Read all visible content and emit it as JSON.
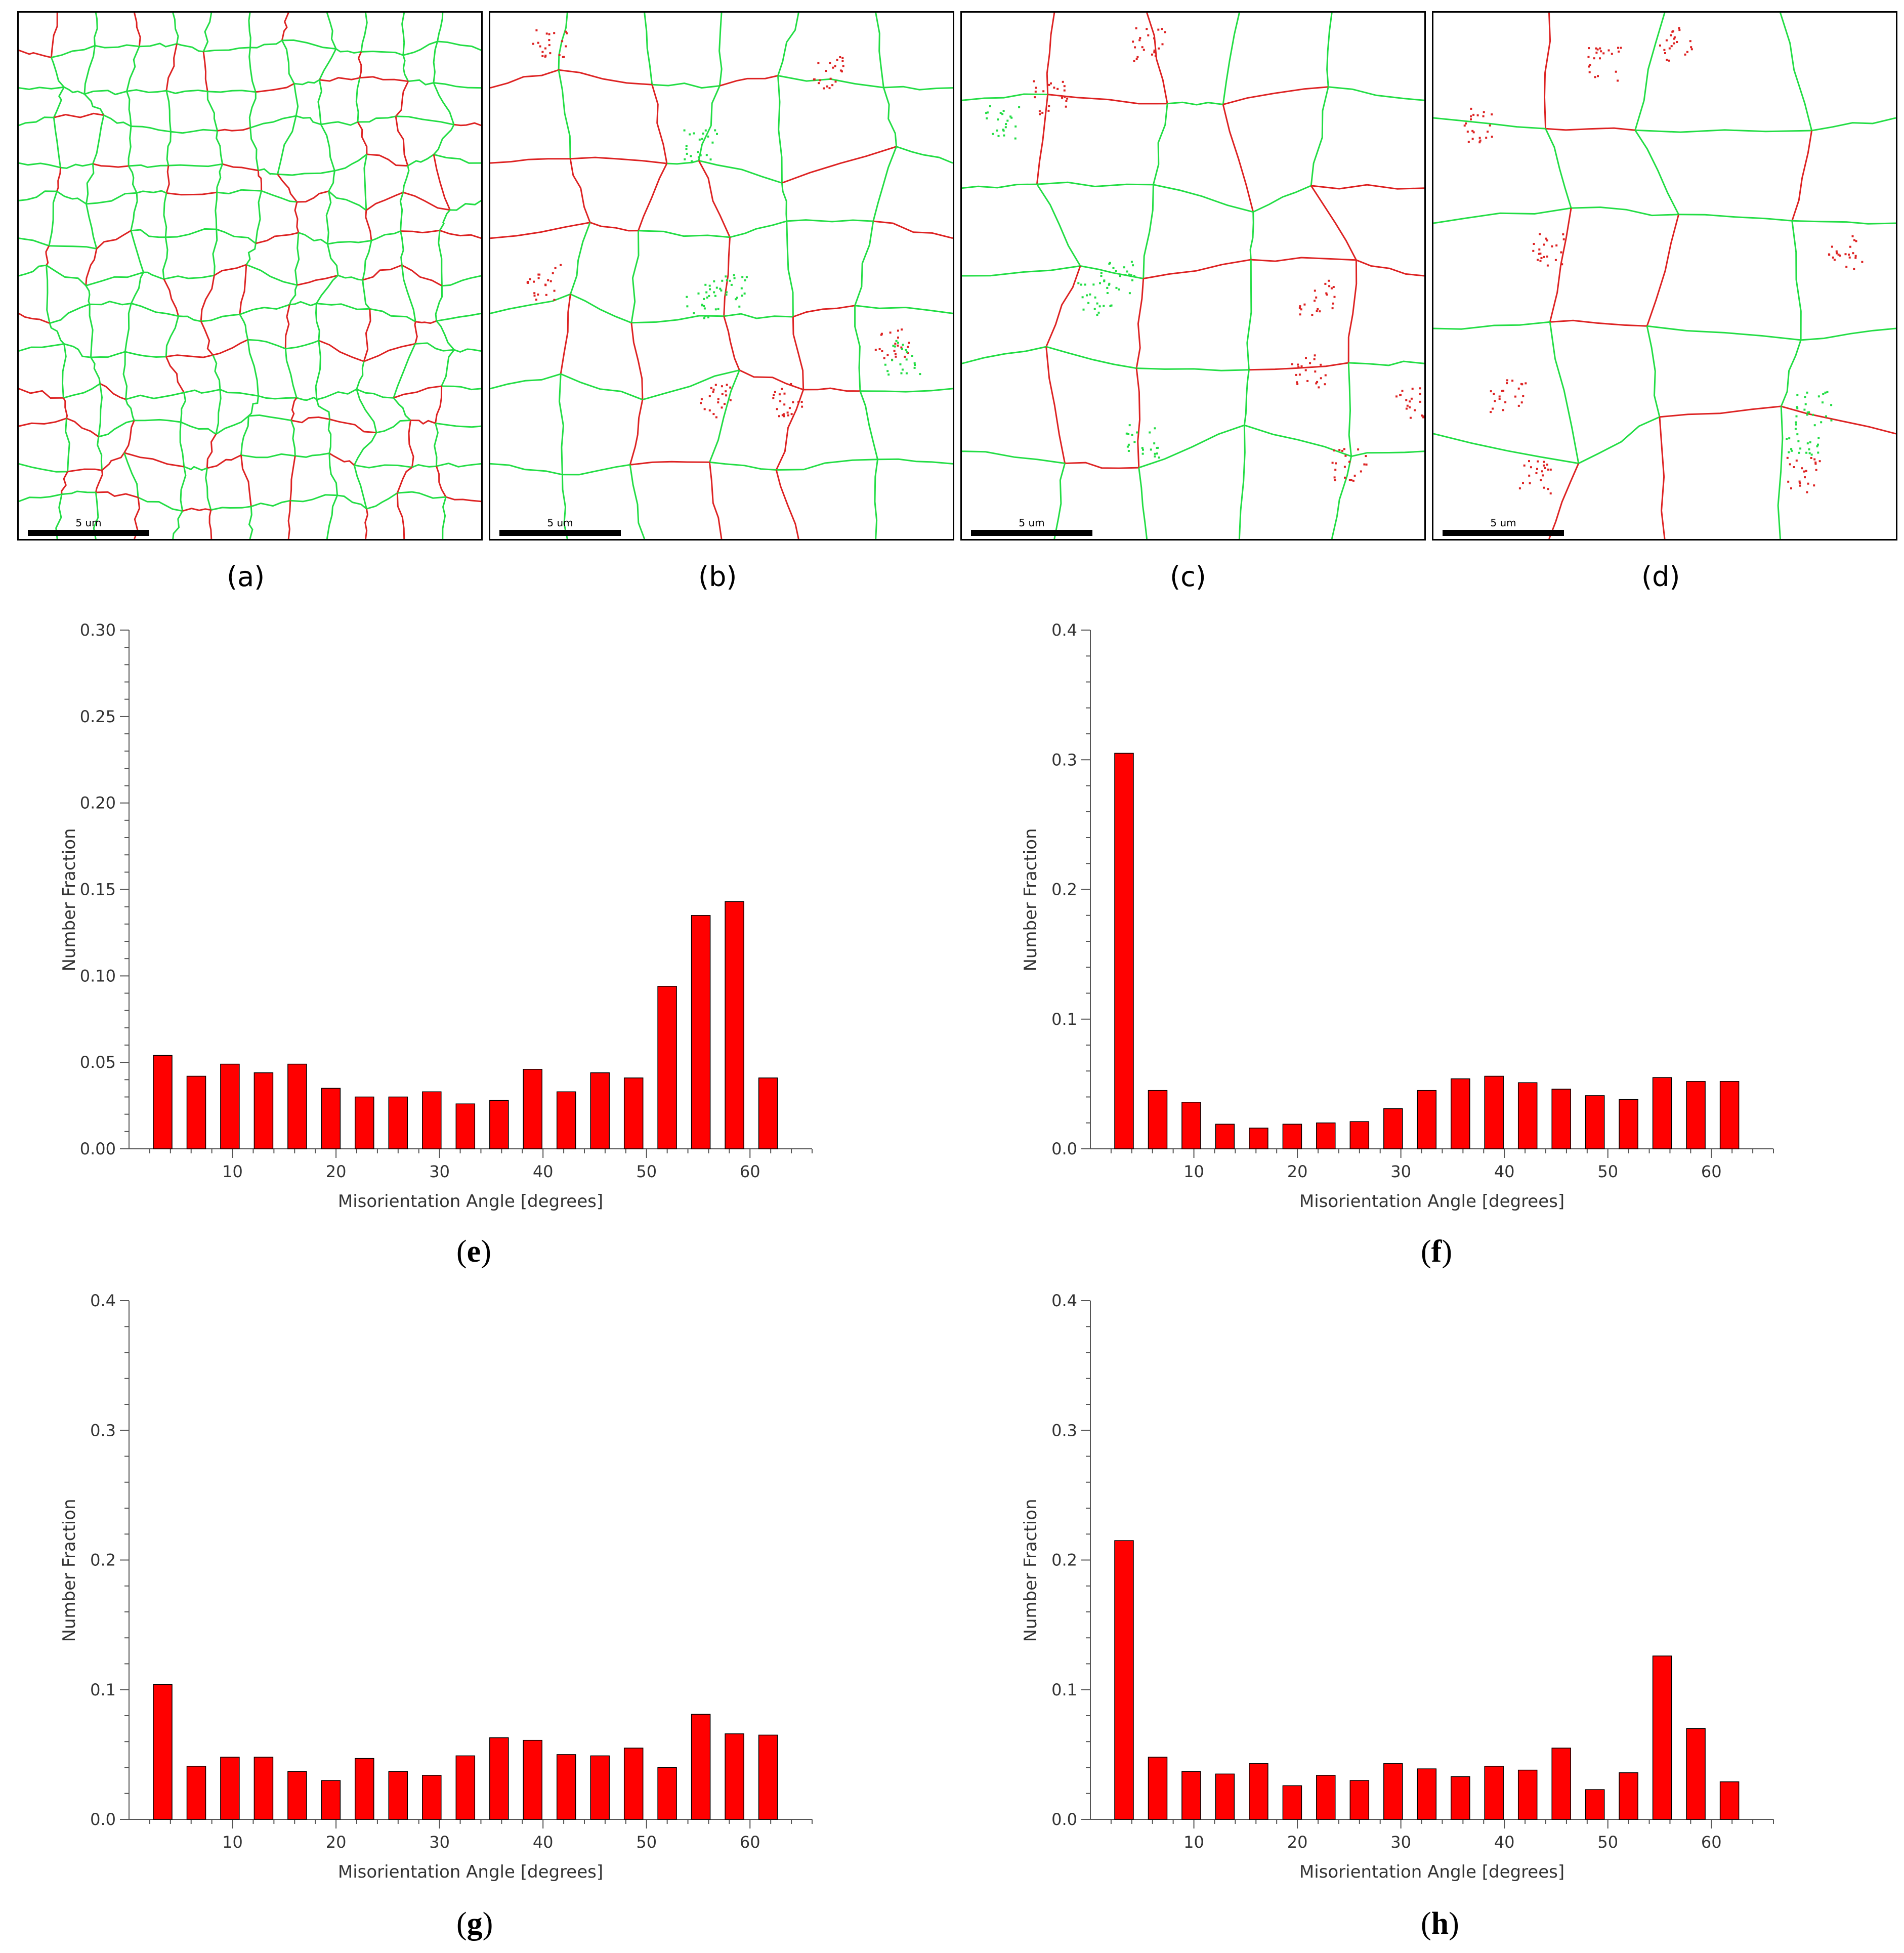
{
  "maps": [
    {
      "label": "(a)",
      "scale": "5 um",
      "density": 12,
      "red_frac": 0.28
    },
    {
      "label": "(b)",
      "scale": "5 um",
      "density": 6,
      "red_frac": 0.35
    },
    {
      "label": "(c)",
      "scale": "5 um",
      "density": 5,
      "red_frac": 0.25
    },
    {
      "label": "(d)",
      "scale": "5 um",
      "density": 4,
      "red_frac": 0.25
    }
  ],
  "colors": {
    "high_angle_boundary": "#22dd44",
    "low_angle_boundary": "#dd2222",
    "bar": "#ff0000"
  },
  "chart_data": [
    {
      "panel": "e",
      "type": "bar",
      "xlabel": "Misorientation Angle [degrees]",
      "ylabel": "Number Fraction",
      "x": [
        3.25,
        6.5,
        9.75,
        13,
        16.25,
        19.5,
        22.75,
        26,
        29.25,
        32.5,
        35.75,
        39,
        42.25,
        45.5,
        48.75,
        52,
        55.25,
        58.5,
        61.75
      ],
      "values": [
        0.054,
        0.042,
        0.049,
        0.044,
        0.049,
        0.035,
        0.03,
        0.03,
        0.033,
        0.026,
        0.028,
        0.046,
        0.033,
        0.044,
        0.041,
        0.094,
        0.135,
        0.143,
        0.041
      ],
      "xlim": [
        0,
        66
      ],
      "ylim": [
        0,
        0.3
      ],
      "xticks": [
        10,
        20,
        30,
        40,
        50,
        60
      ],
      "yticks": [
        0.0,
        0.05,
        0.1,
        0.15,
        0.2,
        0.25,
        0.3
      ],
      "ytick_labels": [
        "0.00",
        "0.05",
        "0.10",
        "0.15",
        "0.20",
        "0.25",
        "0.30"
      ]
    },
    {
      "panel": "f",
      "type": "bar",
      "xlabel": "Misorientation Angle [degrees]",
      "ylabel": "Number Fraction",
      "x": [
        3.25,
        6.5,
        9.75,
        13,
        16.25,
        19.5,
        22.75,
        26,
        29.25,
        32.5,
        35.75,
        39,
        42.25,
        45.5,
        48.75,
        52,
        55.25,
        58.5,
        61.75
      ],
      "values": [
        0.305,
        0.045,
        0.036,
        0.019,
        0.016,
        0.019,
        0.02,
        0.021,
        0.031,
        0.045,
        0.054,
        0.056,
        0.051,
        0.046,
        0.041,
        0.038,
        0.055,
        0.052,
        0.052
      ],
      "xlim": [
        0,
        66
      ],
      "ylim": [
        0,
        0.4
      ],
      "xticks": [
        10,
        20,
        30,
        40,
        50,
        60
      ],
      "yticks": [
        0.0,
        0.1,
        0.2,
        0.3,
        0.4
      ],
      "ytick_labels": [
        "0.0",
        "0.1",
        "0.2",
        "0.3",
        "0.4"
      ]
    },
    {
      "panel": "g",
      "type": "bar",
      "xlabel": "Misorientation Angle [degrees]",
      "ylabel": "Number Fraction",
      "x": [
        3.25,
        6.5,
        9.75,
        13,
        16.25,
        19.5,
        22.75,
        26,
        29.25,
        32.5,
        35.75,
        39,
        42.25,
        45.5,
        48.75,
        52,
        55.25,
        58.5,
        61.75
      ],
      "values": [
        0.104,
        0.041,
        0.048,
        0.048,
        0.037,
        0.03,
        0.047,
        0.037,
        0.034,
        0.049,
        0.063,
        0.061,
        0.05,
        0.049,
        0.055,
        0.04,
        0.081,
        0.066,
        0.065
      ],
      "xlim": [
        0,
        66
      ],
      "ylim": [
        0,
        0.4
      ],
      "xticks": [
        10,
        20,
        30,
        40,
        50,
        60
      ],
      "yticks": [
        0.0,
        0.1,
        0.2,
        0.3,
        0.4
      ],
      "ytick_labels": [
        "0.0",
        "0.1",
        "0.2",
        "0.3",
        "0.4"
      ]
    },
    {
      "panel": "h",
      "type": "bar",
      "xlabel": "Misorientation Angle [degrees]",
      "ylabel": "Number Fraction",
      "x": [
        3.25,
        6.5,
        9.75,
        13,
        16.25,
        19.5,
        22.75,
        26,
        29.25,
        32.5,
        35.75,
        39,
        42.25,
        45.5,
        48.75,
        52,
        55.25,
        58.5,
        61.75
      ],
      "values": [
        0.215,
        0.048,
        0.037,
        0.035,
        0.043,
        0.026,
        0.034,
        0.03,
        0.043,
        0.039,
        0.033,
        0.041,
        0.038,
        0.055,
        0.023,
        0.036,
        0.126,
        0.07,
        0.029
      ],
      "xlim": [
        0,
        66
      ],
      "ylim": [
        0,
        0.4
      ],
      "xticks": [
        10,
        20,
        30,
        40,
        50,
        60
      ],
      "yticks": [
        0.0,
        0.1,
        0.2,
        0.3,
        0.4
      ],
      "ytick_labels": [
        "0.0",
        "0.1",
        "0.2",
        "0.3",
        "0.4"
      ]
    }
  ],
  "chart_labels": [
    "(",
    "e",
    "f",
    "g",
    "h",
    ")"
  ]
}
